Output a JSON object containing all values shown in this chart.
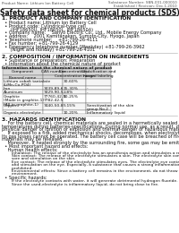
{
  "title": "Safety data sheet for chemical products (SDS)",
  "header_left": "Product Name: Lithium Ion Battery Cell",
  "header_right_line1": "Substance Number: SBN-001-000010",
  "header_right_line2": "Established / Revision: Dec.1.2010",
  "section1_title": "1. PRODUCT AND COMPANY IDENTIFICATION",
  "section1_lines": [
    "  • Product name: Lithium Ion Battery Cell",
    "  • Product code: Cylindrical-type cell",
    "      (IHF18650U, IHF18650L, IHF18650A)",
    "  • Company name:    Sanyo Electric Co., Ltd., Mobile Energy Company",
    "  • Address:    2001 Kamitanaken, Sumoto-City, Hyogo, Japan",
    "  • Telephone number:    +81-799-26-4111",
    "  • Fax number: +81-799-26-4129",
    "  • Emergency telephone number (Weekday) +81-799-26-3962",
    "      (Night and holiday) +81-799-26-4101"
  ],
  "section2_title": "2. COMPOSITION / INFORMATION ON INGREDIENTS",
  "section2_subtitle": "  • Substance or preparation: Preparation",
  "section2_table_note": "  • Information about the chemical nature of product",
  "table_col1": "Component",
  "table_col2": "CAS number",
  "table_col3": "Concentration /\nConcentration range",
  "table_col4": "Classification and\nhazard labeling",
  "table_col1b": "Banned name",
  "table_rows": [
    [
      "Lithium cobalt tantalate\n(LiMn-Co-PO4)",
      "",
      "30-60%",
      ""
    ],
    [
      "Iron",
      "7439-89-6",
      "15-30%",
      "-"
    ],
    [
      "Aluminum",
      "7429-90-5",
      "2-8%",
      "-"
    ],
    [
      "Graphite\n(Made in graphite-1)\n(All-in graphite-1)",
      "77760-42-5\n7782-42-5",
      "10-25%",
      ""
    ],
    [
      "Copper",
      "7440-50-8",
      "5-15%",
      "Sensitization of the skin\ngroup No.2"
    ],
    [
      "Organic electrolyte",
      "",
      "10-20%",
      "Inflammatory liquid"
    ]
  ],
  "section3_title": "3. HAZARDS IDENTIFICATION",
  "section3_para_lines": [
    "    For the battery cell, chemical materials are sealed in a hermetically sealed metal case, designed to withstand",
    "temperatures during batteries-specifications. During normal use, as a result, during normal use, there is no",
    "physical danger of ignition or explosion and thermal-danger of hazardous materials leakage.",
    "    If exposed to a fire, added mechanical shocks, decomposes, when electrolyte-stimulate may occur.",
    "Its gas losses cannot be operated. The battery cell case will be breached of fire-pathways, hazardous",
    "materials may be released.",
    "    Moreover, if heated strongly by the surrounding fire, some gas may be emitted."
  ],
  "section3_bullet1": "  • Most important hazard and effects:",
  "section3_human": "    Human health effects:",
  "section3_human_lines": [
    "        Inhalation: The release of the electrolyte has an anesthesia action and stimulates a respiratory tract.",
    "        Skin contact: The release of the electrolyte stimulates a skin. The electrolyte skin contact causes a",
    "        sore and stimulation on the skin.",
    "        Eye contact: The release of the electrolyte stimulates eyes. The electrolyte eye contact causes a sore",
    "        and stimulation on the eye. Especially, a substance that causes a strong inflammation of the eye is",
    "        prohibited.",
    "        Environmental effects: Since a battery cell remains in the environment, do not throw out it into the",
    "        environment."
  ],
  "section3_specific": "  • Specific hazards:",
  "section3_specific_lines": [
    "        If the electrolyte contacts with water, it will generate detrimental hydrogen fluoride.",
    "        Since the used-electrolyte is inflammatory liquid, do not bring close to fire."
  ],
  "bg_color": "#ffffff",
  "line_color": "#999999",
  "table_header_bg": "#d8d8d8"
}
